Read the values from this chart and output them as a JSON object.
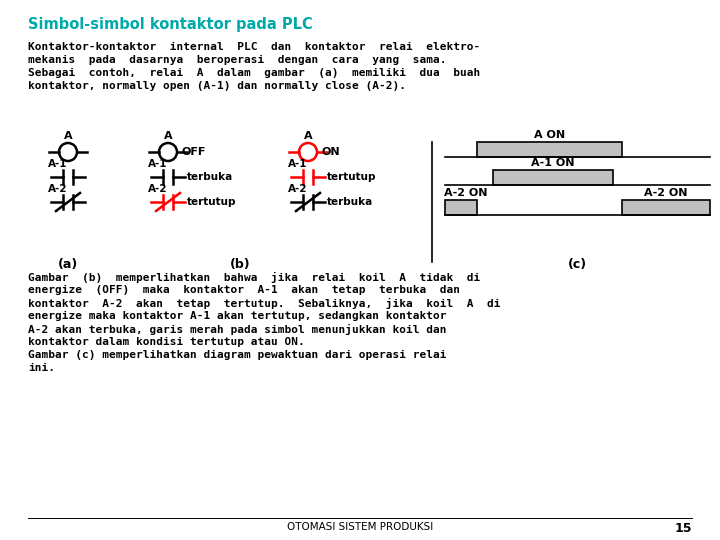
{
  "title": "Simbol-simbol kontaktor pada PLC",
  "title_color": "#00AAAA",
  "bg_color": "#FFFFFF",
  "footer": "OTOMASI SISTEM PRODUKSI",
  "page": "15",
  "para1_lines": [
    "Kontaktor-kontaktor  internal  PLC  dan  kontaktor  relai  elektro-",
    "mekanis  pada  dasarnya  beroperasi  dengan  cara  yang  sama.",
    "Sebagai  contoh,  relai  A  dalam  gambar  (a)  memiliki  dua  buah",
    "kontaktor, normally open (A-1) dan normally close (A-2)."
  ],
  "para2_lines": [
    "Gambar  (b)  memperlihatkan  bahwa  jika  relai  koil  A  tidak  di",
    "energize  (OFF)  maka  kontaktor  A-1  akan  tetap  terbuka  dan",
    "kontaktor  A-2  akan  tetap  tertutup.  Sebaliknya,  jika  koil  A  di",
    "energize maka kontaktor A-1 akan tertutup, sedangkan kontaktor",
    "A-2 akan terbuka, garis merah pada simbol menunjukkan koil dan",
    "kontaktor dalam kondisi tertutup atau ON.",
    "Gambar (c) memperlihatkan diagram pewaktuan dari operasi relai",
    "ini."
  ]
}
